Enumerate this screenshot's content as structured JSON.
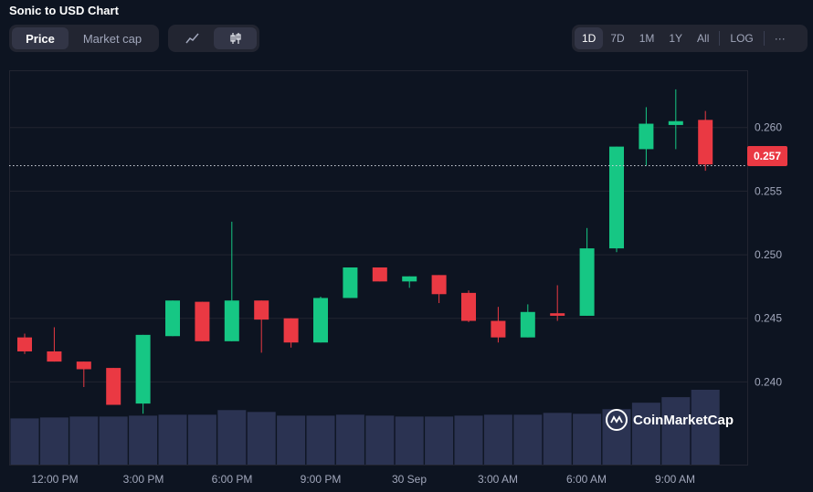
{
  "title": "Sonic to USD Chart",
  "metric_tabs": [
    {
      "label": "Price",
      "active": true
    },
    {
      "label": "Market cap",
      "active": false
    }
  ],
  "chart_type_icons": [
    {
      "icon": "line-chart-icon",
      "active": false
    },
    {
      "icon": "candlestick-icon",
      "active": true
    }
  ],
  "timeframes": [
    {
      "label": "1D",
      "active": true
    },
    {
      "label": "7D",
      "active": false
    },
    {
      "label": "1M",
      "active": false
    },
    {
      "label": "1Y",
      "active": false
    },
    {
      "label": "All",
      "active": false
    }
  ],
  "log_label": "LOG",
  "more_label": "···",
  "current_price": "0.257",
  "watermark": "CoinMarketCap",
  "colors": {
    "up": "#16c784",
    "down": "#ea3943",
    "volume": "#2b3352",
    "grid": "#222531"
  },
  "chart_data": {
    "type": "candlestick",
    "title": "Sonic to USD Chart",
    "ylim": [
      0.2335,
      0.2645
    ],
    "yticks": [
      "0.240",
      "0.245",
      "0.250",
      "0.255",
      "0.260"
    ],
    "xticks": [
      "12:00 PM",
      "3:00 PM",
      "6:00 PM",
      "9:00 PM",
      "30 Sep",
      "3:00 AM",
      "6:00 AM",
      "9:00 AM"
    ],
    "current_price": 0.257,
    "grid": true,
    "candles": [
      {
        "o": 0.2435,
        "h": 0.2438,
        "l": 0.2422,
        "c": 0.2424
      },
      {
        "o": 0.2424,
        "h": 0.2443,
        "l": 0.2416,
        "c": 0.2416
      },
      {
        "o": 0.2416,
        "h": 0.2416,
        "l": 0.2396,
        "c": 0.241
      },
      {
        "o": 0.2411,
        "h": 0.2411,
        "l": 0.2382,
        "c": 0.2382
      },
      {
        "o": 0.2383,
        "h": 0.2437,
        "l": 0.2375,
        "c": 0.2437
      },
      {
        "o": 0.2436,
        "h": 0.2464,
        "l": 0.2436,
        "c": 0.2464
      },
      {
        "o": 0.2463,
        "h": 0.2463,
        "l": 0.2432,
        "c": 0.2432
      },
      {
        "o": 0.2432,
        "h": 0.2526,
        "l": 0.2432,
        "c": 0.2464
      },
      {
        "o": 0.2464,
        "h": 0.2464,
        "l": 0.2423,
        "c": 0.2449
      },
      {
        "o": 0.245,
        "h": 0.245,
        "l": 0.2427,
        "c": 0.2431
      },
      {
        "o": 0.2431,
        "h": 0.2467,
        "l": 0.2431,
        "c": 0.2466
      },
      {
        "o": 0.2466,
        "h": 0.249,
        "l": 0.2466,
        "c": 0.249
      },
      {
        "o": 0.249,
        "h": 0.249,
        "l": 0.2479,
        "c": 0.2479
      },
      {
        "o": 0.2479,
        "h": 0.2483,
        "l": 0.2474,
        "c": 0.2483
      },
      {
        "o": 0.2484,
        "h": 0.2484,
        "l": 0.2462,
        "c": 0.2469
      },
      {
        "o": 0.247,
        "h": 0.2472,
        "l": 0.2447,
        "c": 0.2448
      },
      {
        "o": 0.2448,
        "h": 0.2459,
        "l": 0.2431,
        "c": 0.2435
      },
      {
        "o": 0.2435,
        "h": 0.2461,
        "l": 0.2435,
        "c": 0.2455
      },
      {
        "o": 0.2454,
        "h": 0.2476,
        "l": 0.2448,
        "c": 0.2452
      },
      {
        "o": 0.2452,
        "h": 0.2521,
        "l": 0.2452,
        "c": 0.2505
      },
      {
        "o": 0.2505,
        "h": 0.2585,
        "l": 0.2502,
        "c": 0.2585
      },
      {
        "o": 0.2583,
        "h": 0.2616,
        "l": 0.257,
        "c": 0.2603
      },
      {
        "o": 0.2602,
        "h": 0.263,
        "l": 0.2583,
        "c": 0.2605
      },
      {
        "o": 0.2606,
        "h": 0.2613,
        "l": 0.2566,
        "c": 0.2571
      }
    ],
    "volume": [
      50,
      51,
      52,
      52,
      53,
      54,
      54,
      59,
      57,
      53,
      53,
      54,
      53,
      52,
      52,
      53,
      54,
      54,
      56,
      55,
      60,
      67,
      73,
      81
    ]
  }
}
